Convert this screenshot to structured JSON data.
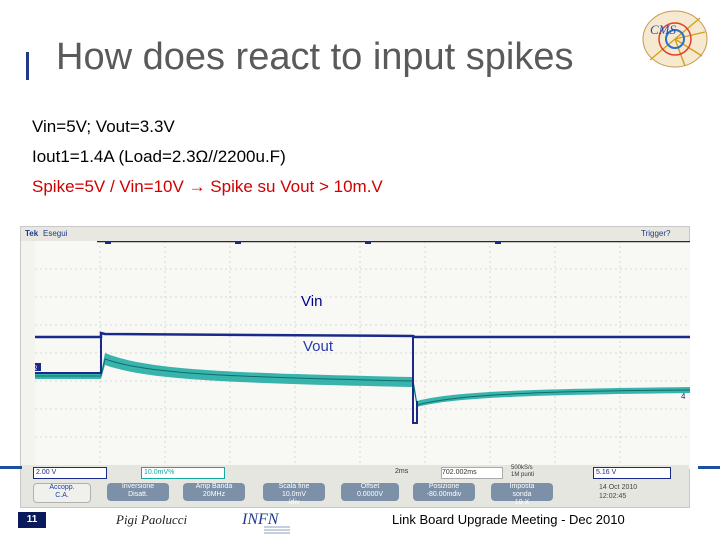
{
  "slide": {
    "title": "How does react to input spikes",
    "bullets": [
      "Vin=5V; Vout=3.3V",
      "Iout1=1.4A  (Load=2.3Ω//2200u.F)",
      "Spike=5V / Vin=10V  →  Spike su Vout > 10m.V"
    ],
    "footer": {
      "page_number": "11",
      "author": "Pigi Paolucci",
      "meeting": "Link Board Upgrade Meeting - Dec 2010"
    }
  },
  "scope": {
    "brand": "Tek",
    "mode": "Esegui",
    "trigger": "Trigger?",
    "trace_labels": {
      "vin": "Vin",
      "vout": "Vout"
    },
    "channel_markers": [
      "2",
      "1"
    ],
    "status_row": {
      "ch1": "2.00 V",
      "ch2": "10.0mV%",
      "timebase": "2ms",
      "trigger_pos": "702.002ms",
      "sample_rate": "500kS/s",
      "points": "1M punti",
      "trig_level": "5.16 V"
    },
    "bottom_cells": [
      "Accopp.\nC.A.",
      "Inversione\nDisatt.",
      "Amp Banda\n20MHz",
      "Scala fine\n10.0mV\n/div",
      "Offset\n0.0000V",
      "Posizione\n-80.00mdiv",
      "Imposta\nsonda\n10 X"
    ],
    "date": "14 Oct 2010",
    "time": "12:02:45"
  },
  "colors": {
    "title": "#5a5a5a",
    "spike_line": "#d00000",
    "vin_trace": "#1a2a8a",
    "vout_trace": "#18a8a0",
    "accent_blue": "#1f4fa0"
  }
}
